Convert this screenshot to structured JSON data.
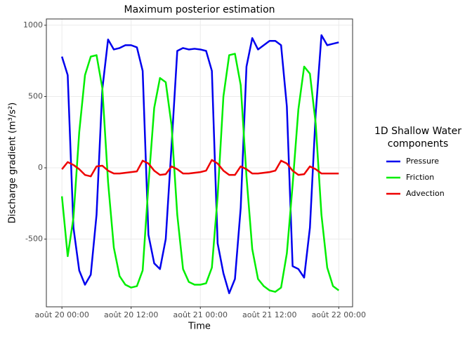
{
  "chart_data": {
    "type": "line",
    "title": "Maximum posterior estimation",
    "x_label": "Time",
    "y_label": "Discharge gradient (m³/s²)",
    "legend_title": [
      "1D Shallow Water",
      "components"
    ],
    "legend_position": "right",
    "grid": true,
    "x": [
      0,
      1,
      2,
      3,
      4,
      5,
      6,
      7,
      8,
      9,
      10,
      11,
      12,
      13,
      14,
      15,
      16,
      17,
      18,
      19,
      20,
      21,
      22,
      23,
      24,
      25,
      26,
      27,
      28,
      29,
      30,
      31,
      32,
      33,
      34,
      35,
      36,
      37,
      38,
      39,
      40,
      41,
      42,
      43,
      44,
      45,
      46,
      47,
      48
    ],
    "xlim": [
      -2.7,
      50.4
    ],
    "xticks": [
      {
        "value": 0,
        "label": "août 20 00:00"
      },
      {
        "value": 12,
        "label": "août 20 12:00"
      },
      {
        "value": 24,
        "label": "août 21 00:00"
      },
      {
        "value": 36,
        "label": "août 21 12:00"
      },
      {
        "value": 48,
        "label": "août 22 00:00"
      }
    ],
    "ylim": [
      -975,
      1044
    ],
    "yticks": [
      -500,
      0,
      500,
      1000
    ],
    "series": [
      {
        "name": "Pressure",
        "color": "#0000ee",
        "values": [
          780,
          650,
          -420,
          -720,
          -820,
          -750,
          -330,
          550,
          900,
          830,
          840,
          860,
          860,
          845,
          680,
          -470,
          -670,
          -710,
          -500,
          150,
          820,
          840,
          830,
          835,
          830,
          820,
          680,
          -530,
          -740,
          -880,
          -780,
          -280,
          710,
          910,
          830,
          860,
          890,
          890,
          860,
          430,
          -690,
          -710,
          -770,
          -420,
          380,
          930,
          860,
          870,
          880
        ]
      },
      {
        "name": "Friction",
        "color": "#00ee00",
        "values": [
          -200,
          -620,
          -350,
          250,
          650,
          780,
          790,
          560,
          -100,
          -560,
          -760,
          -820,
          -840,
          -830,
          -720,
          -120,
          420,
          630,
          600,
          300,
          -330,
          -710,
          -800,
          -820,
          -820,
          -810,
          -700,
          -200,
          500,
          790,
          800,
          580,
          -60,
          -570,
          -780,
          -830,
          -860,
          -870,
          -840,
          -600,
          -120,
          410,
          710,
          660,
          310,
          -330,
          -700,
          -830,
          -860
        ]
      },
      {
        "name": "Advection",
        "color": "#ee0000",
        "values": [
          -10,
          40,
          20,
          -10,
          -50,
          -60,
          10,
          15,
          -20,
          -40,
          -40,
          -35,
          -30,
          -25,
          50,
          30,
          -20,
          -50,
          -45,
          10,
          -10,
          -40,
          -40,
          -35,
          -30,
          -20,
          55,
          30,
          -20,
          -50,
          -50,
          10,
          -10,
          -40,
          -40,
          -35,
          -30,
          -20,
          50,
          30,
          -20,
          -50,
          -45,
          10,
          -10,
          -40,
          -40,
          -40,
          -40
        ]
      }
    ]
  }
}
